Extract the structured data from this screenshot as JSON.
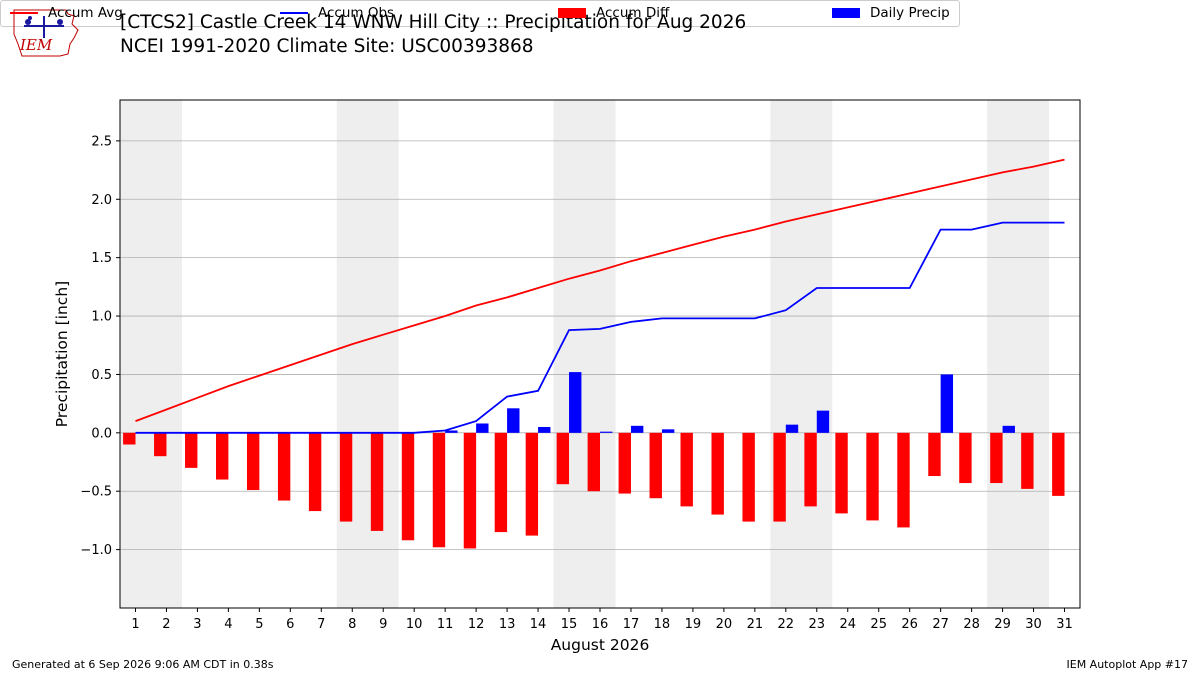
{
  "header": {
    "title_line1": "[CTCS2] Castle Creek 14 WNW Hill City :: Precipitation for Aug 2026",
    "title_line2": "NCEI 1991-2020 Climate Site: USC00393868",
    "logo_text": "IEM"
  },
  "footer": {
    "generated": "Generated at 6 Sep 2026 9:06 AM CDT in 0.38s",
    "app": "IEM Autoplot App #17"
  },
  "colors": {
    "accum_avg": "#ff0000",
    "accum_obs": "#0000ff",
    "accum_diff": "#ff0000",
    "daily_precip": "#0000ff",
    "weekend_shade": "#eeeeee",
    "grid": "#b0b0b0"
  },
  "chart_data": {
    "type": "bar",
    "xlabel": "August 2026",
    "ylabel": "Precipitation [inch]",
    "ylim": [
      -1.5,
      2.85
    ],
    "yticks": [
      -1.0,
      -0.5,
      0.0,
      0.5,
      1.0,
      1.5,
      2.0,
      2.5
    ],
    "ytick_labels": [
      "−1.0",
      "−0.5",
      "0.0",
      "0.5",
      "1.0",
      "1.5",
      "2.0",
      "2.5"
    ],
    "xlim": [
      0.5,
      31.5
    ],
    "x": [
      1,
      2,
      3,
      4,
      5,
      6,
      7,
      8,
      9,
      10,
      11,
      12,
      13,
      14,
      15,
      16,
      17,
      18,
      19,
      20,
      21,
      22,
      23,
      24,
      25,
      26,
      27,
      28,
      29,
      30,
      31
    ],
    "categories": [
      "1",
      "2",
      "3",
      "4",
      "5",
      "6",
      "7",
      "8",
      "9",
      "10",
      "11",
      "12",
      "13",
      "14",
      "15",
      "16",
      "17",
      "18",
      "19",
      "20",
      "21",
      "22",
      "23",
      "24",
      "25",
      "26",
      "27",
      "28",
      "29",
      "30",
      "31"
    ],
    "weekend_spans": [
      [
        1,
        2
      ],
      [
        8,
        9
      ],
      [
        15,
        16
      ],
      [
        22,
        23
      ],
      [
        29,
        30
      ]
    ],
    "grid": "horizontal",
    "legend": {
      "placement": "top",
      "columns": 4
    },
    "series": [
      {
        "name": "Accum Avg",
        "type": "line",
        "values": [
          0.1,
          0.2,
          0.3,
          0.4,
          0.49,
          0.58,
          0.67,
          0.76,
          0.84,
          0.92,
          1.0,
          1.09,
          1.16,
          1.24,
          1.32,
          1.39,
          1.47,
          1.54,
          1.61,
          1.68,
          1.74,
          1.81,
          1.87,
          1.93,
          1.99,
          2.05,
          2.11,
          2.17,
          2.23,
          2.28,
          2.34
        ]
      },
      {
        "name": "Accum Obs",
        "type": "line",
        "values": [
          0.0,
          0.0,
          0.0,
          0.0,
          0.0,
          0.0,
          0.0,
          0.0,
          0.0,
          0.0,
          0.02,
          0.1,
          0.31,
          0.36,
          0.88,
          0.89,
          0.95,
          0.98,
          0.98,
          0.98,
          0.98,
          1.05,
          1.24,
          1.24,
          1.24,
          1.24,
          1.74,
          1.74,
          1.8,
          1.8,
          1.8
        ]
      },
      {
        "name": "Accum Diff",
        "type": "bar",
        "values": [
          -0.1,
          -0.2,
          -0.3,
          -0.4,
          -0.49,
          -0.58,
          -0.67,
          -0.76,
          -0.84,
          -0.92,
          -0.98,
          -0.99,
          -0.85,
          -0.88,
          -0.44,
          -0.5,
          -0.52,
          -0.56,
          -0.63,
          -0.7,
          -0.76,
          -0.76,
          -0.63,
          -0.69,
          -0.75,
          -0.81,
          -0.37,
          -0.43,
          -0.43,
          -0.48,
          -0.54
        ]
      },
      {
        "name": "Daily Precip",
        "type": "bar",
        "values": [
          0.0,
          0.0,
          0.0,
          0.0,
          0.0,
          0.0,
          0.0,
          0.0,
          0.0,
          0.0,
          0.02,
          0.08,
          0.21,
          0.05,
          0.52,
          0.01,
          0.06,
          0.03,
          0.0,
          0.0,
          0.0,
          0.07,
          0.19,
          0.0,
          0.0,
          0.0,
          0.5,
          0.0,
          0.06,
          0.0,
          0.0
        ]
      }
    ]
  }
}
